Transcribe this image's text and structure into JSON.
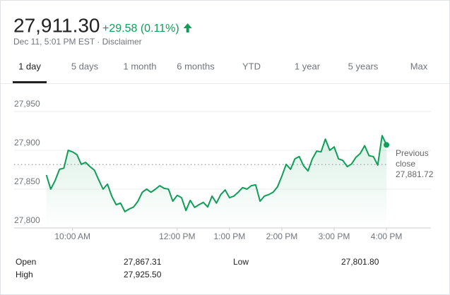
{
  "header": {
    "price": "27,911.30",
    "change": "+29.58 (0.11%)",
    "meta": "Dec 11, 5:01 PM EST · Disclaimer"
  },
  "tabs": {
    "items": [
      "1 day",
      "5 days",
      "1 month",
      "6 months",
      "YTD",
      "1 year",
      "5 years",
      "Max"
    ],
    "selected": 0
  },
  "chart_data": {
    "type": "line",
    "color": "#0f9d58",
    "grid": true,
    "x": [
      570,
      575,
      580,
      585,
      590,
      595,
      600,
      605,
      610,
      615,
      620,
      625,
      630,
      635,
      640,
      645,
      650,
      655,
      660,
      665,
      670,
      675,
      680,
      685,
      690,
      695,
      700,
      705,
      710,
      715,
      720,
      725,
      730,
      735,
      740,
      745,
      750,
      755,
      760,
      765,
      770,
      775,
      780,
      785,
      790,
      795,
      800,
      805,
      810,
      815,
      820,
      825,
      830,
      835,
      840,
      845,
      850,
      855,
      860,
      865,
      870,
      875,
      880,
      885,
      890,
      895,
      900,
      905,
      910,
      915,
      920,
      925,
      930,
      935,
      940,
      945,
      950,
      955,
      960
    ],
    "values": [
      27868.2,
      27850,
      27861,
      27875.5,
      27877,
      27900,
      27898,
      27894.5,
      27882,
      27884.5,
      27879,
      27874.5,
      27862,
      27850,
      27856.5,
      27841,
      27830,
      27832,
      27821,
      27824.5,
      27827,
      27834.5,
      27846,
      27850,
      27846,
      27850,
      27854.5,
      27851,
      27850,
      27834.5,
      27842,
      27839,
      27822.5,
      27835.5,
      27826.5,
      27830,
      27833,
      27827,
      27841,
      27832,
      27843,
      27849,
      27839,
      27841,
      27846,
      27852,
      27850,
      27854.5,
      27855.5,
      27834.5,
      27841,
      27843,
      27846,
      27853,
      27866.5,
      27882,
      27875.5,
      27889,
      27892,
      27880,
      27873.5,
      27889,
      27899,
      27898,
      27914.5,
      27900,
      27904.5,
      27889,
      27887,
      27879,
      27882.5,
      27891,
      27896,
      27906,
      27893,
      27892,
      27881,
      27919,
      27907
    ],
    "xlim": [
      533,
      1011
    ],
    "ylim": [
      27800,
      27950
    ],
    "xticks": [
      {
        "value": 600,
        "label": "10:00 AM"
      },
      {
        "value": 720,
        "label": "12:00 PM"
      },
      {
        "value": 780,
        "label": "1:00 PM"
      },
      {
        "value": 840,
        "label": "2:00 PM"
      },
      {
        "value": 900,
        "label": "3:00 PM"
      },
      {
        "value": 960,
        "label": "4:00 PM"
      }
    ],
    "yticks": [
      {
        "value": 27800,
        "label": "27,800"
      },
      {
        "value": 27850,
        "label": "27,850"
      },
      {
        "value": 27900,
        "label": "27,900"
      },
      {
        "value": 27950,
        "label": "27,950"
      }
    ],
    "previous_close": {
      "name": "Previous close",
      "value": 27881.72,
      "label": "27,881.72"
    }
  },
  "stats": [
    {
      "name": "Open",
      "value": "27,867.31"
    },
    {
      "name": "High",
      "value": "27,925.50"
    },
    {
      "name": "Low",
      "value": "27,801.80"
    }
  ]
}
